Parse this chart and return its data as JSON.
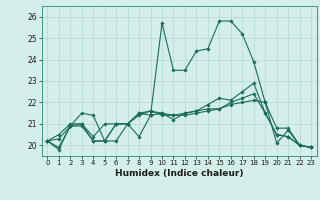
{
  "title": "",
  "xlabel": "Humidex (Indice chaleur)",
  "ylabel": "",
  "background_color": "#d4eeea",
  "grid_color": "#b8ddd8",
  "line_color": "#1a6b5a",
  "xlim": [
    -0.5,
    23.5
  ],
  "ylim": [
    19.5,
    26.5
  ],
  "yticks": [
    20,
    21,
    22,
    23,
    24,
    25,
    26
  ],
  "xticks": [
    0,
    1,
    2,
    3,
    4,
    5,
    6,
    7,
    8,
    9,
    10,
    11,
    12,
    13,
    14,
    15,
    16,
    17,
    18,
    19,
    20,
    21,
    22,
    23
  ],
  "series": [
    [
      20.2,
      19.8,
      20.9,
      20.9,
      20.2,
      20.2,
      21.0,
      21.0,
      20.4,
      21.4,
      25.7,
      23.5,
      23.5,
      24.4,
      24.5,
      25.8,
      25.8,
      25.2,
      23.9,
      22.0,
      20.8,
      20.8,
      20.0,
      19.9
    ],
    [
      20.2,
      19.9,
      20.9,
      21.5,
      21.4,
      20.2,
      20.2,
      21.0,
      21.5,
      21.6,
      21.5,
      21.4,
      21.5,
      21.6,
      21.7,
      21.7,
      21.9,
      22.0,
      22.1,
      22.0,
      20.1,
      20.7,
      20.0,
      19.9
    ],
    [
      20.2,
      20.3,
      20.9,
      21.0,
      20.2,
      20.2,
      21.0,
      21.0,
      21.5,
      21.4,
      21.5,
      21.2,
      21.5,
      21.6,
      21.9,
      22.2,
      22.1,
      22.5,
      22.9,
      21.5,
      20.5,
      20.4,
      20.0,
      19.9
    ],
    [
      20.2,
      20.5,
      21.0,
      21.0,
      20.4,
      21.0,
      21.0,
      21.0,
      21.4,
      21.6,
      21.4,
      21.4,
      21.4,
      21.5,
      21.6,
      21.7,
      22.0,
      22.2,
      22.4,
      21.5,
      20.5,
      20.4,
      20.0,
      19.9
    ]
  ]
}
